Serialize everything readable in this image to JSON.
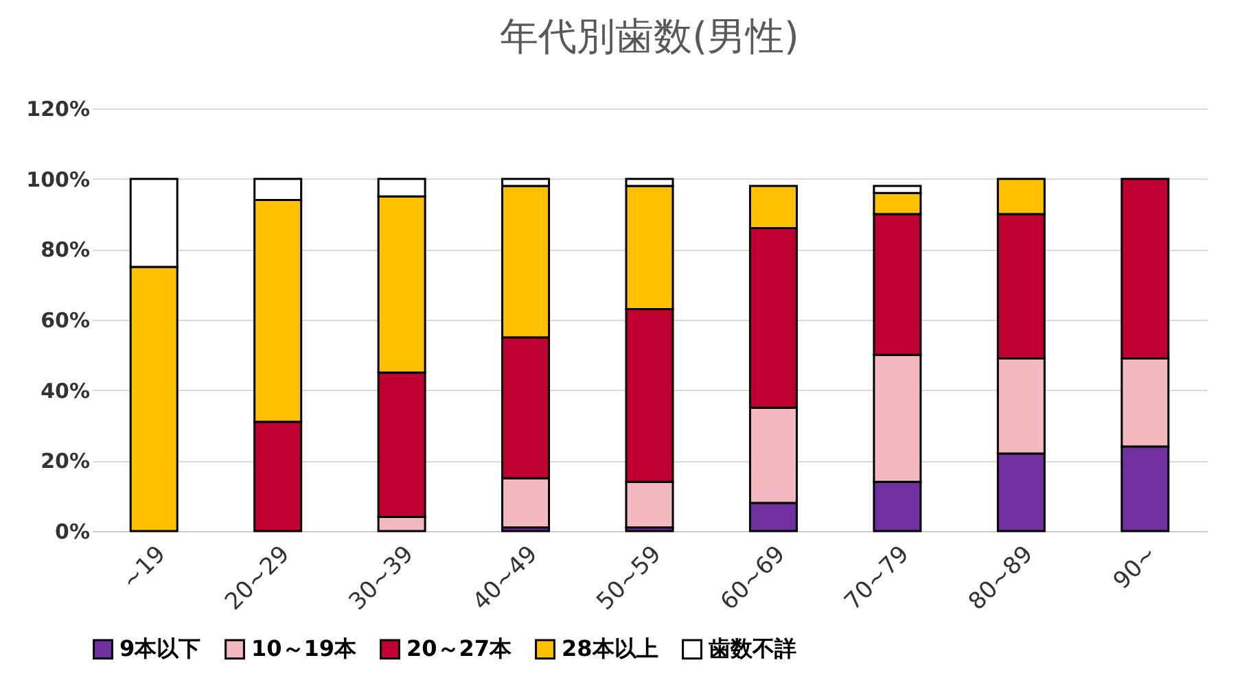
{
  "chart_data": {
    "type": "bar",
    "title": "年代別歯数(男性)",
    "stacked": true,
    "categories": [
      "~19",
      "20~29",
      "30~39",
      "40~49",
      "50~59",
      "60~69",
      "70~79",
      "80~89",
      "90~"
    ],
    "series": [
      {
        "name": "9本以下",
        "color": "#7030a0",
        "values": [
          0,
          0,
          0,
          1,
          1,
          8,
          14,
          22,
          24
        ]
      },
      {
        "name": "10～19本",
        "color": "#f4b8c0",
        "values": [
          0,
          0,
          4,
          14,
          13,
          27,
          36,
          27,
          25
        ]
      },
      {
        "name": "20～27本",
        "color": "#c00030",
        "values": [
          0,
          31,
          41,
          40,
          49,
          51,
          40,
          41,
          51
        ]
      },
      {
        "name": "28本以上",
        "color": "#ffc000",
        "values": [
          75,
          63,
          50,
          43,
          35,
          12,
          6,
          10,
          0
        ]
      },
      {
        "name": "歯数不詳",
        "color": "#ffffff",
        "values": [
          25,
          6,
          5,
          2,
          2,
          0,
          2,
          0,
          0
        ]
      }
    ],
    "ylim": [
      0,
      120
    ],
    "yticks": [
      {
        "value": 0,
        "label": "0%"
      },
      {
        "value": 20,
        "label": "20%"
      },
      {
        "value": 40,
        "label": "40%"
      },
      {
        "value": 60,
        "label": "60%"
      },
      {
        "value": 80,
        "label": "80%"
      },
      {
        "value": 100,
        "label": "100%"
      },
      {
        "value": 120,
        "label": "120%"
      }
    ],
    "grid": "y",
    "legend": "bottom"
  }
}
